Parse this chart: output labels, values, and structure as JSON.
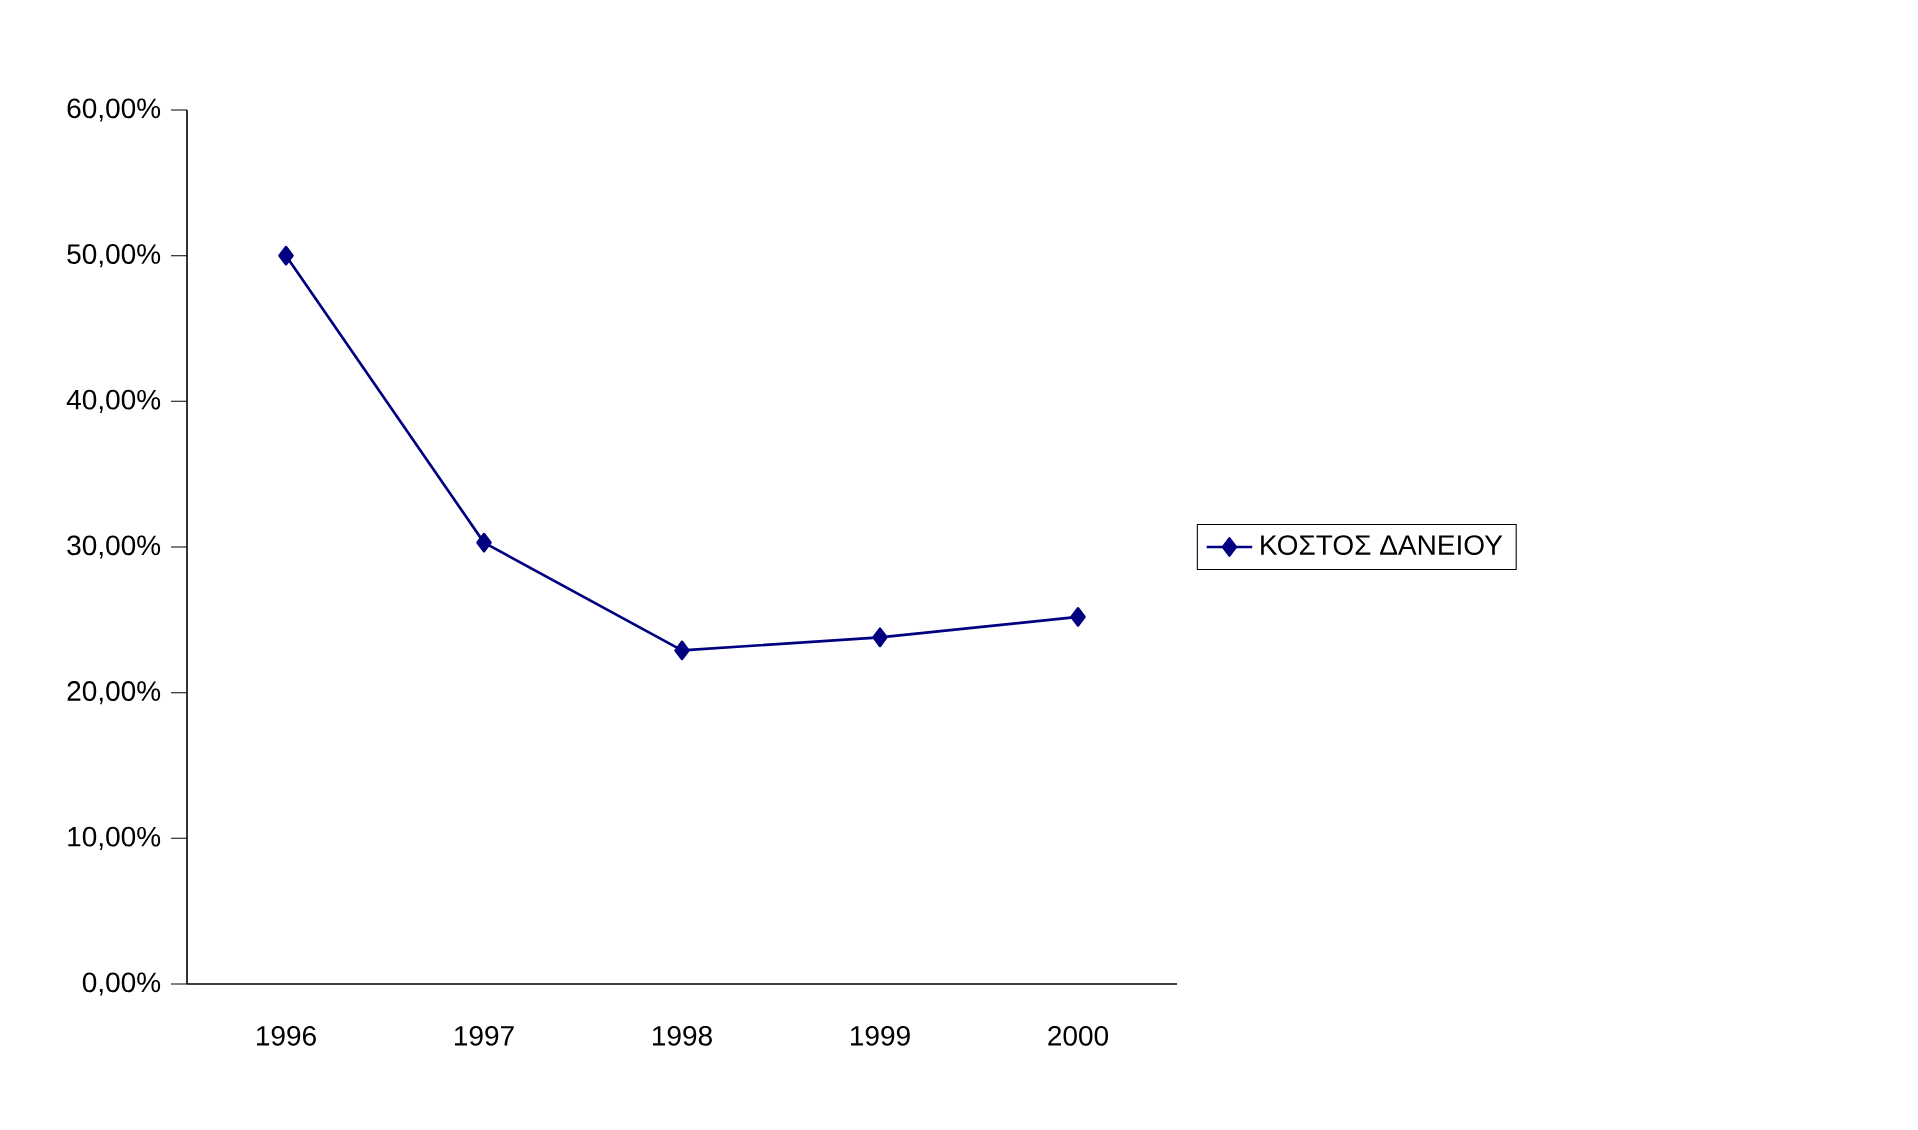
{
  "chart_data": {
    "type": "line",
    "categories": [
      "1996",
      "1997",
      "1998",
      "1999",
      "2000"
    ],
    "series": [
      {
        "name": "ΚΟΣΤΟΣ ΔΑΝΕΙΟΥ",
        "color": "#000080",
        "values": [
          50,
          30.3,
          22.9,
          23.8,
          25.2
        ]
      }
    ],
    "ylim": [
      0,
      60
    ],
    "yticks": [
      {
        "value": 0,
        "label": "0,00%"
      },
      {
        "value": 10,
        "label": "10,00%"
      },
      {
        "value": 20,
        "label": "20,00%"
      },
      {
        "value": 30,
        "label": "30,00%"
      },
      {
        "value": 40,
        "label": "40,00%"
      },
      {
        "value": 50,
        "label": "50,00%"
      },
      {
        "value": 60,
        "label": "60,00%"
      }
    ],
    "marker": "diamond",
    "line_style": "solid",
    "legend": "right"
  }
}
